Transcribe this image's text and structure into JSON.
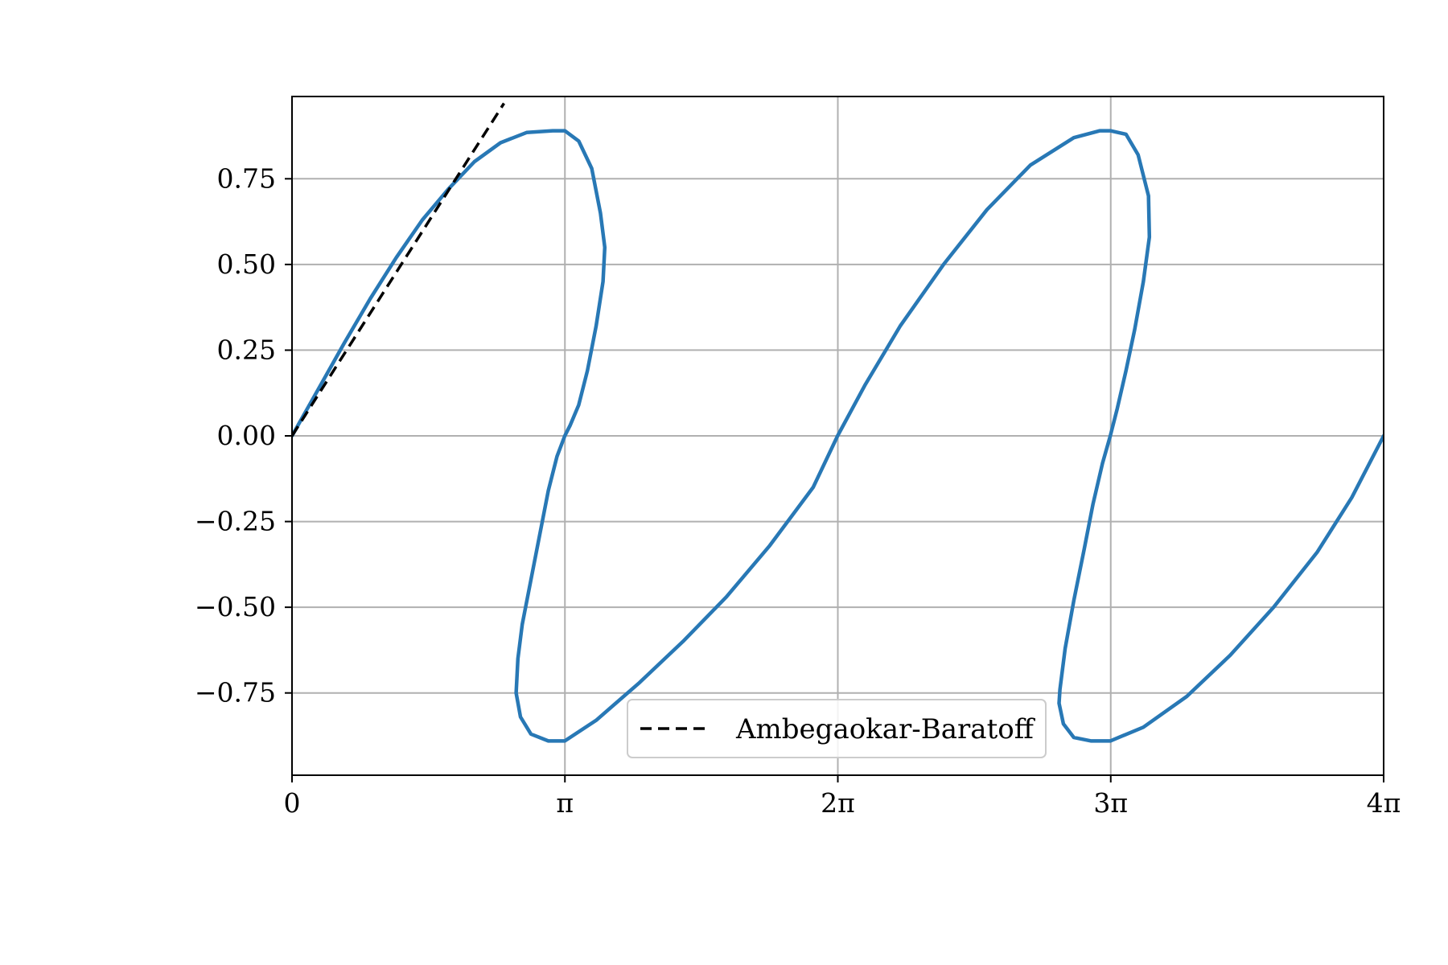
{
  "chart_data": {
    "type": "line",
    "title": "",
    "xlabel": "",
    "ylabel": "",
    "xlim": [
      0,
      12.566370614359172
    ],
    "ylim": [
      -0.99,
      0.99
    ],
    "grid": true,
    "x_ticks": [
      {
        "value": 0,
        "label": "0"
      },
      {
        "value": 3.141592653589793,
        "label": "π"
      },
      {
        "value": 6.283185307179586,
        "label": "2π"
      },
      {
        "value": 9.42477796076938,
        "label": "3π"
      },
      {
        "value": 12.566370614359172,
        "label": "4π"
      }
    ],
    "y_ticks": [
      {
        "value": 0.75,
        "label": "0.75"
      },
      {
        "value": 0.5,
        "label": "0.50"
      },
      {
        "value": 0.25,
        "label": "0.25"
      },
      {
        "value": 0,
        "label": "0.00"
      },
      {
        "value": -0.25,
        "label": "−0.25"
      },
      {
        "value": -0.5,
        "label": "−0.50"
      },
      {
        "value": -0.75,
        "label": "−0.75"
      }
    ],
    "legend": {
      "placement": "lower center",
      "entries": [
        {
          "label": "Ambegaokar-Baratoff",
          "style": "dashed",
          "color": "#000000"
        }
      ]
    },
    "series": [
      {
        "style": "solid",
        "color": "#2878b5",
        "x": [
          0,
          0.3,
          0.6,
          0.9,
          1.2,
          1.5,
          1.8,
          2.1,
          2.4,
          2.7,
          3.0,
          3.14,
          3.3,
          3.45,
          3.55,
          3.6,
          3.58,
          3.5,
          3.4,
          3.3,
          3.2,
          3.14,
          3.05,
          2.95,
          2.85,
          2.75,
          2.65,
          2.6,
          2.58,
          2.63,
          2.75,
          2.95,
          3.14,
          3.5,
          4.0,
          4.5,
          5.0,
          5.5,
          6.0,
          6.28,
          6.6,
          7.0,
          7.5,
          8.0,
          8.5,
          9.0,
          9.3,
          9.42,
          9.6,
          9.74,
          9.86,
          9.87,
          9.8,
          9.7,
          9.6,
          9.5,
          9.42,
          9.33,
          9.22,
          9.12,
          9.0,
          8.9,
          8.84,
          8.83,
          8.88,
          9.0,
          9.2,
          9.42,
          9.8,
          10.3,
          10.8,
          11.3,
          11.8,
          12.2,
          12.566
        ],
        "y": [
          0,
          0.135,
          0.27,
          0.4,
          0.52,
          0.63,
          0.72,
          0.8,
          0.855,
          0.885,
          0.89,
          0.89,
          0.86,
          0.78,
          0.65,
          0.55,
          0.45,
          0.32,
          0.19,
          0.09,
          0.03,
          0,
          -0.06,
          -0.16,
          -0.29,
          -0.42,
          -0.55,
          -0.65,
          -0.75,
          -0.82,
          -0.87,
          -0.89,
          -0.89,
          -0.83,
          -0.72,
          -0.6,
          -0.47,
          -0.32,
          -0.15,
          0,
          0.15,
          0.32,
          0.5,
          0.66,
          0.79,
          0.87,
          0.89,
          0.89,
          0.88,
          0.82,
          0.7,
          0.58,
          0.45,
          0.31,
          0.19,
          0.08,
          0,
          -0.08,
          -0.2,
          -0.33,
          -0.48,
          -0.62,
          -0.74,
          -0.78,
          -0.84,
          -0.88,
          -0.89,
          -0.89,
          -0.85,
          -0.76,
          -0.64,
          -0.5,
          -0.34,
          -0.18,
          0
        ]
      },
      {
        "name": "Ambegaokar-Baratoff",
        "style": "dashed",
        "color": "#000000",
        "x": [
          0,
          2.44
        ],
        "y": [
          0,
          0.97
        ]
      }
    ]
  }
}
